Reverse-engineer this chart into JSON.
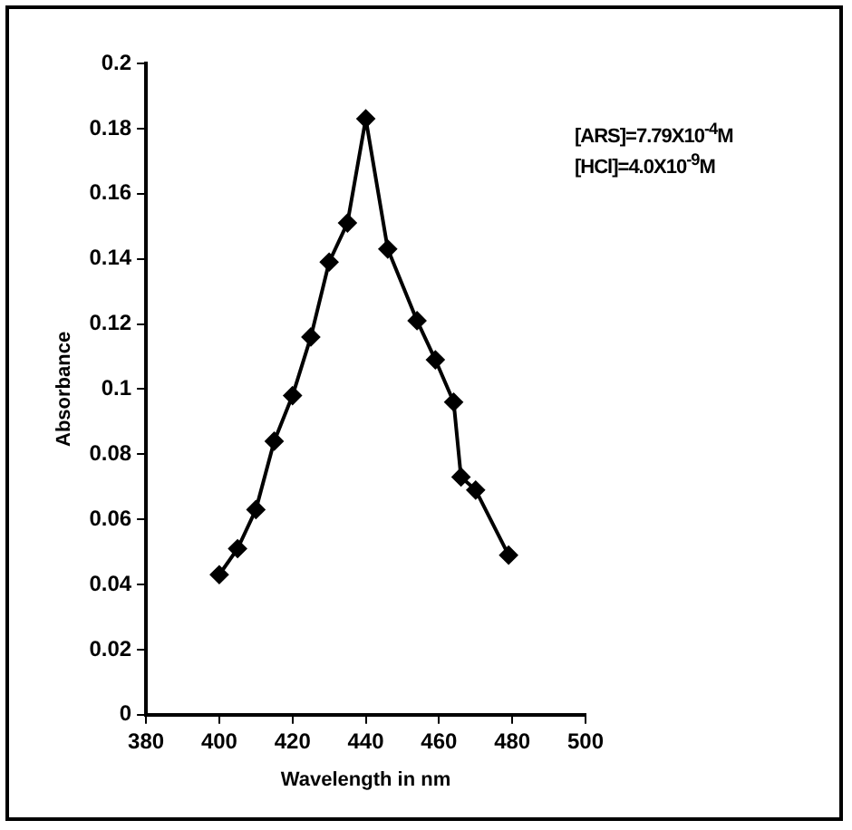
{
  "chart_data": {
    "type": "line",
    "xlabel": "Wavelength in nm",
    "ylabel": "Absorbance",
    "x": [
      400,
      405,
      410,
      415,
      420,
      425,
      430,
      435,
      440,
      446,
      454,
      459,
      464,
      466,
      470,
      479
    ],
    "series": [
      {
        "color": "#000000",
        "values": [
          0.043,
          0.051,
          0.063,
          0.084,
          0.098,
          0.116,
          0.139,
          0.151,
          0.183,
          0.143,
          0.121,
          0.109,
          0.096,
          0.073,
          0.069,
          0.049
        ]
      }
    ],
    "xlim": [
      380,
      500
    ],
    "xticks": [
      380,
      400,
      420,
      440,
      460,
      480,
      500
    ],
    "ylim": [
      0,
      0.2
    ],
    "yticks": [
      0,
      0.02,
      0.04,
      0.06,
      0.08,
      0.1,
      0.12,
      0.14,
      0.16,
      0.18,
      0.2
    ],
    "annotations": [
      "[ARS]=7.79X10$^{-4}$M",
      "[HCl]=4.0X10$^{-9}$M"
    ],
    "marker": "diamond",
    "line_style": "solid",
    "grid": false,
    "legend": false
  }
}
